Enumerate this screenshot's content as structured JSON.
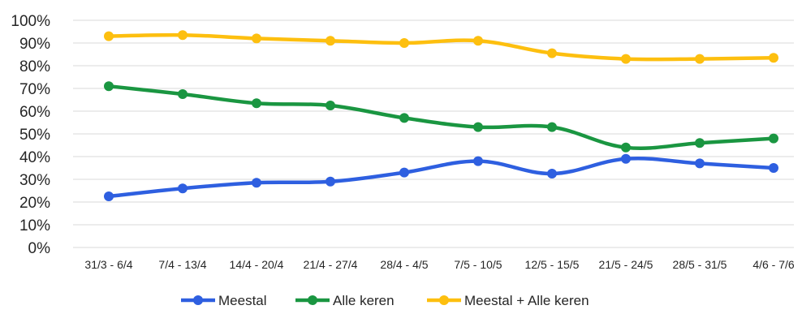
{
  "chart_data": {
    "type": "line",
    "title": "",
    "xlabel": "",
    "ylabel": "",
    "ylim": [
      0,
      100
    ],
    "y_ticks": [
      "0%",
      "10%",
      "20%",
      "30%",
      "40%",
      "50%",
      "60%",
      "70%",
      "80%",
      "90%",
      "100%"
    ],
    "grid": true,
    "legend_position": "bottom",
    "categories": [
      "31/3 - 6/4",
      "7/4 - 13/4",
      "14/4 - 20/4",
      "21/4 - 27/4",
      "28/4 - 4/5",
      "7/5 - 10/5",
      "12/5 - 15/5",
      "21/5 - 24/5",
      "28/5 - 31/5",
      "4/6 - 7/6"
    ],
    "series": [
      {
        "name": "Meestal",
        "color": "#2e5fe0",
        "values": [
          22.5,
          26,
          28.5,
          29,
          33,
          38,
          32.5,
          39,
          37,
          35
        ]
      },
      {
        "name": "Alle keren",
        "color": "#1a9641",
        "values": [
          71,
          67.5,
          63.5,
          62.5,
          57,
          53,
          53,
          44,
          46,
          48
        ]
      },
      {
        "name": "Meestal + Alle keren",
        "color": "#fdbf0f",
        "values": [
          93,
          93.5,
          92,
          91,
          90,
          91,
          85.5,
          83,
          83,
          83.5
        ]
      }
    ]
  }
}
